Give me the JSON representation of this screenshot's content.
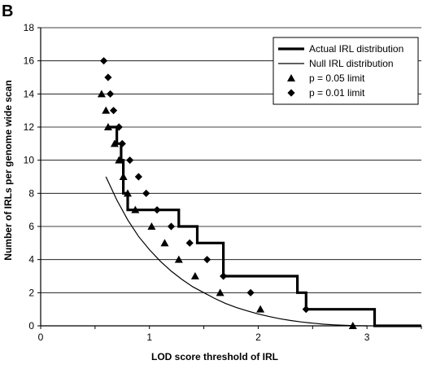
{
  "panel_label": "B",
  "chart_data": {
    "type": "line",
    "title": "",
    "xlabel": "LOD score threshold of IRL",
    "ylabel": "Number of IRLs per genome wide scan",
    "xlim": [
      0,
      3.5
    ],
    "ylim": [
      0,
      18
    ],
    "x_ticks": [
      0,
      1,
      2,
      3
    ],
    "y_ticks": [
      0,
      2,
      4,
      6,
      8,
      10,
      12,
      14,
      16,
      18
    ],
    "grid": "horizontal",
    "legend_position": "top-right",
    "series": [
      {
        "name": "Actual IRL distribution",
        "kind": "step",
        "color": "#000000",
        "points": [
          [
            0.62,
            12
          ],
          [
            0.7,
            12
          ],
          [
            0.7,
            11
          ],
          [
            0.74,
            11
          ],
          [
            0.74,
            10
          ],
          [
            0.76,
            10
          ],
          [
            0.76,
            8
          ],
          [
            0.8,
            8
          ],
          [
            0.8,
            7
          ],
          [
            1.27,
            7
          ],
          [
            1.27,
            6
          ],
          [
            1.44,
            6
          ],
          [
            1.44,
            5
          ],
          [
            1.68,
            5
          ],
          [
            1.68,
            3
          ],
          [
            2.36,
            3
          ],
          [
            2.36,
            2
          ],
          [
            2.44,
            2
          ],
          [
            2.44,
            1
          ],
          [
            3.07,
            1
          ],
          [
            3.07,
            0
          ],
          [
            3.5,
            0
          ]
        ]
      },
      {
        "name": "Null IRL distribution",
        "kind": "curve",
        "color": "#000000",
        "points": [
          [
            0.6,
            9
          ],
          [
            0.7,
            7.6
          ],
          [
            0.8,
            6.4
          ],
          [
            0.9,
            5.4
          ],
          [
            1.0,
            4.6
          ],
          [
            1.1,
            3.9
          ],
          [
            1.2,
            3.3
          ],
          [
            1.3,
            2.8
          ],
          [
            1.4,
            2.35
          ],
          [
            1.5,
            2.0
          ],
          [
            1.6,
            1.65
          ],
          [
            1.7,
            1.35
          ],
          [
            1.8,
            1.1
          ],
          [
            1.9,
            0.9
          ],
          [
            2.0,
            0.72
          ],
          [
            2.1,
            0.56
          ],
          [
            2.2,
            0.43
          ],
          [
            2.3,
            0.32
          ],
          [
            2.4,
            0.23
          ],
          [
            2.5,
            0.16
          ],
          [
            2.6,
            0.1
          ],
          [
            2.7,
            0.06
          ],
          [
            2.8,
            0.03
          ],
          [
            2.9,
            0.01
          ],
          [
            3.0,
            0
          ]
        ]
      },
      {
        "name": "p = 0.05 limit",
        "kind": "triangle",
        "color": "#000000",
        "points": [
          [
            0.56,
            14
          ],
          [
            0.6,
            13
          ],
          [
            0.62,
            12
          ],
          [
            0.68,
            11
          ],
          [
            0.72,
            10
          ],
          [
            0.76,
            9
          ],
          [
            0.8,
            8
          ],
          [
            0.87,
            7
          ],
          [
            1.02,
            6
          ],
          [
            1.14,
            5
          ],
          [
            1.27,
            4
          ],
          [
            1.42,
            3
          ],
          [
            1.65,
            2
          ],
          [
            2.02,
            1
          ],
          [
            2.87,
            0
          ]
        ]
      },
      {
        "name": "p = 0.01 limit",
        "kind": "diamond",
        "color": "#000000",
        "points": [
          [
            0.58,
            16
          ],
          [
            0.62,
            15
          ],
          [
            0.64,
            14
          ],
          [
            0.67,
            13
          ],
          [
            0.72,
            12
          ],
          [
            0.75,
            11
          ],
          [
            0.82,
            10
          ],
          [
            0.9,
            9
          ],
          [
            0.97,
            8
          ],
          [
            1.07,
            7
          ],
          [
            1.2,
            6
          ],
          [
            1.37,
            5
          ],
          [
            1.53,
            4
          ],
          [
            1.68,
            3
          ],
          [
            1.93,
            2
          ],
          [
            2.44,
            1
          ]
        ]
      }
    ]
  }
}
